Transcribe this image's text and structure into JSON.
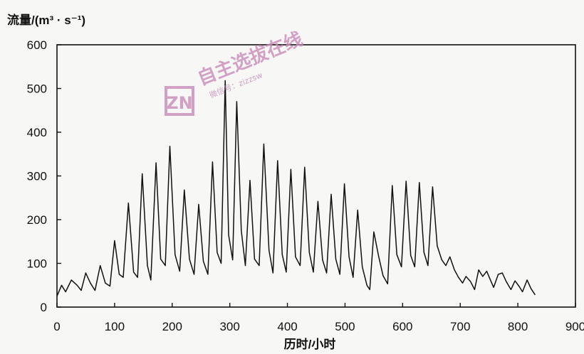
{
  "chart_data": {
    "type": "line",
    "ylabel": "流量/(m³ · s⁻¹)",
    "xlabel": "历时/小时",
    "xlim": [
      0,
      900
    ],
    "ylim": [
      0,
      600
    ],
    "xticks": [
      "0",
      "100",
      "200",
      "300",
      "400",
      "500",
      "600",
      "700",
      "800",
      "900"
    ],
    "yticks": [
      "0",
      "100",
      "200",
      "300",
      "400",
      "500",
      "600"
    ],
    "grid": false,
    "series": [
      {
        "values": [
          [
            0,
            25
          ],
          [
            8,
            50
          ],
          [
            15,
            35
          ],
          [
            25,
            62
          ],
          [
            35,
            50
          ],
          [
            42,
            38
          ],
          [
            50,
            78
          ],
          [
            58,
            55
          ],
          [
            66,
            38
          ],
          [
            75,
            95
          ],
          [
            84,
            55
          ],
          [
            92,
            48
          ],
          [
            100,
            152
          ],
          [
            108,
            75
          ],
          [
            115,
            68
          ],
          [
            124,
            238
          ],
          [
            133,
            80
          ],
          [
            140,
            68
          ],
          [
            148,
            305
          ],
          [
            157,
            95
          ],
          [
            163,
            62
          ],
          [
            172,
            330
          ],
          [
            180,
            110
          ],
          [
            188,
            95
          ],
          [
            196,
            368
          ],
          [
            205,
            120
          ],
          [
            213,
            82
          ],
          [
            221,
            268
          ],
          [
            230,
            110
          ],
          [
            238,
            75
          ],
          [
            246,
            235
          ],
          [
            254,
            105
          ],
          [
            262,
            75
          ],
          [
            270,
            332
          ],
          [
            278,
            125
          ],
          [
            285,
            100
          ],
          [
            292,
            518
          ],
          [
            298,
            165
          ],
          [
            305,
            108
          ],
          [
            312,
            470
          ],
          [
            320,
            175
          ],
          [
            327,
            95
          ],
          [
            335,
            290
          ],
          [
            343,
            110
          ],
          [
            351,
            95
          ],
          [
            359,
            373
          ],
          [
            368,
            130
          ],
          [
            375,
            78
          ],
          [
            383,
            335
          ],
          [
            391,
            120
          ],
          [
            398,
            80
          ],
          [
            406,
            315
          ],
          [
            414,
            115
          ],
          [
            422,
            95
          ],
          [
            430,
            320
          ],
          [
            438,
            125
          ],
          [
            445,
            80
          ],
          [
            453,
            242
          ],
          [
            461,
            108
          ],
          [
            468,
            78
          ],
          [
            476,
            258
          ],
          [
            484,
            110
          ],
          [
            491,
            75
          ],
          [
            499,
            282
          ],
          [
            507,
            115
          ],
          [
            514,
            68
          ],
          [
            522,
            222
          ],
          [
            530,
            92
          ],
          [
            538,
            50
          ],
          [
            543,
            40
          ],
          [
            550,
            172
          ],
          [
            558,
            118
          ],
          [
            566,
            72
          ],
          [
            574,
            53
          ],
          [
            582,
            278
          ],
          [
            590,
            120
          ],
          [
            598,
            92
          ],
          [
            606,
            288
          ],
          [
            614,
            118
          ],
          [
            621,
            92
          ],
          [
            629,
            285
          ],
          [
            637,
            125
          ],
          [
            644,
            95
          ],
          [
            652,
            275
          ],
          [
            660,
            140
          ],
          [
            668,
            108
          ],
          [
            675,
            95
          ],
          [
            682,
            115
          ],
          [
            690,
            85
          ],
          [
            697,
            68
          ],
          [
            704,
            55
          ],
          [
            710,
            70
          ],
          [
            718,
            58
          ],
          [
            725,
            40
          ],
          [
            732,
            85
          ],
          [
            739,
            70
          ],
          [
            746,
            82
          ],
          [
            753,
            60
          ],
          [
            758,
            45
          ],
          [
            766,
            75
          ],
          [
            773,
            78
          ],
          [
            780,
            58
          ],
          [
            788,
            40
          ],
          [
            795,
            60
          ],
          [
            802,
            48
          ],
          [
            808,
            35
          ],
          [
            816,
            62
          ],
          [
            823,
            42
          ],
          [
            830,
            28
          ]
        ]
      }
    ]
  },
  "watermark": {
    "logo_letters": "ZN",
    "brand_text": "自主选拔在线",
    "sub_text": "微信号：zizzsw",
    "color": "#c98bb8"
  },
  "colors": {
    "line": "#111111",
    "background": "#f7f7f5"
  }
}
